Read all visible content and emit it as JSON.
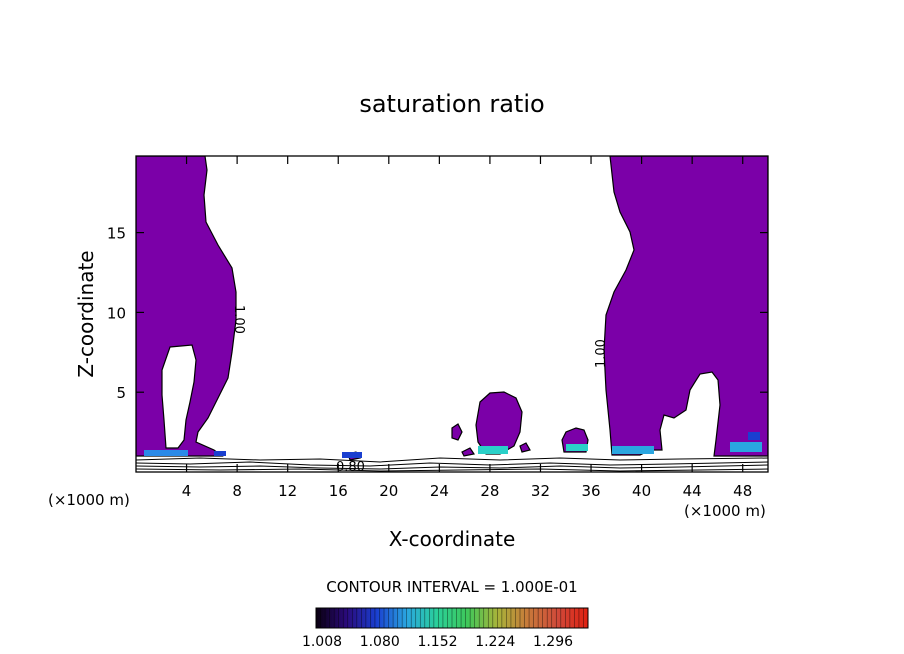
{
  "chart_data": {
    "type": "filled-contour",
    "title": "saturation ratio",
    "xlabel": "X-coordinate",
    "ylabel": "Z-coordinate",
    "x_unit_left": "(×1000 m)",
    "x_unit_right": "(×1000 m)",
    "xlim": [
      0,
      50
    ],
    "ylim": [
      0,
      19.8
    ],
    "xticks": [
      4,
      8,
      12,
      16,
      20,
      24,
      28,
      32,
      36,
      40,
      44,
      48
    ],
    "yticks": [
      5,
      10,
      15
    ],
    "contour_labels": [
      "1.00",
      "1.00",
      "0.80"
    ],
    "contour_interval_text": "CONTOUR INTERVAL = 1.000E-01",
    "colorbar_ticks": [
      "1.008",
      "1.080",
      "1.152",
      "1.224",
      "1.296"
    ],
    "fill_color": "#7b00a8",
    "colorbar_stops": [
      "#0a0010",
      "#2a0a7a",
      "#1a3fd0",
      "#2aa6e0",
      "#2ad09a",
      "#3ec85a",
      "#a8b43a",
      "#c87a3a",
      "#d04a3a",
      "#e02010"
    ]
  }
}
